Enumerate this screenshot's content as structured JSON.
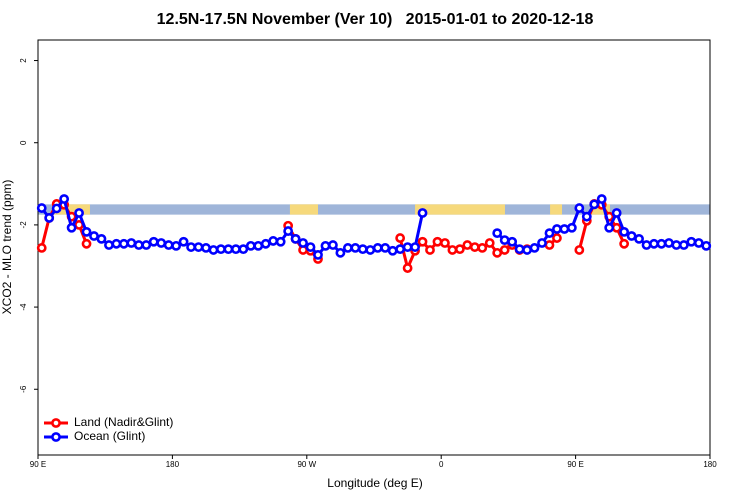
{
  "chart_data": {
    "type": "line",
    "title": "12.5N-17.5N November (Ver 10)   2015-01-01 to 2020-12-18",
    "x_label": "Longitude (deg E)",
    "y_label": "XCO2 - MLO trend (ppm)",
    "xlim": [
      90,
      540
    ],
    "ylim": [
      -7.6,
      2.5
    ],
    "xticks": [
      {
        "value": 90,
        "label": "90 E"
      },
      180,
      {
        "value": 270,
        "label": "90 W"
      },
      {
        "value": 360,
        "label": "0"
      },
      {
        "value": 450,
        "label": "90 E"
      },
      {
        "value": 540,
        "label": "180"
      }
    ],
    "yticks": [
      -6,
      -4,
      -2,
      0,
      2
    ],
    "legend": "bottom-left",
    "surface_strip": {
      "ylim": [
        -1.75,
        -1.5
      ],
      "ocean_color": "#9fb5d9",
      "land_color": "#f6d97c",
      "land_spans": [
        [
          99.4,
          124.8
        ],
        [
          258.7,
          277.5
        ],
        [
          342.5,
          402.7
        ],
        [
          432.9,
          440.9
        ],
        [
          459.6,
          473
        ]
      ]
    },
    "x": [
      92.5,
      97.5,
      102.5,
      107.5,
      112.5,
      117.5,
      122.5,
      127.5,
      132.5,
      137.5,
      142.5,
      147.5,
      152.5,
      157.5,
      162.5,
      167.5,
      172.5,
      177.5,
      182.5,
      187.5,
      192.5,
      197.5,
      202.5,
      207.5,
      212.5,
      217.5,
      222.5,
      227.5,
      232.5,
      237.5,
      242.5,
      247.5,
      252.5,
      257.5,
      262.5,
      267.5,
      272.5,
      277.5,
      282.5,
      287.5,
      292.5,
      297.5,
      302.5,
      307.5,
      312.5,
      317.5,
      322.5,
      327.5,
      332.5,
      337.5,
      342.5,
      347.5,
      352.5,
      357.5,
      362.5,
      367.5,
      372.5,
      377.5,
      382.5,
      387.5,
      392.5,
      397.5,
      402.5,
      407.5,
      412.5,
      417.5,
      422.5,
      427.5,
      432.5,
      437.5,
      442.5,
      447.5,
      452.5,
      457.5,
      462.5,
      467.5,
      472.5,
      477.5,
      482.5,
      487.5,
      492.5,
      497.5,
      502.5,
      507.5,
      512.5,
      517.5,
      522.5,
      527.5,
      532.5,
      537.5
    ],
    "series": [
      {
        "name": "Land (Nadir&Glint)",
        "color": "#ff0000",
        "values": [
          -2.56,
          -1.83,
          -1.49,
          -1.51,
          -1.8,
          -2.0,
          -2.46,
          null,
          null,
          null,
          null,
          null,
          null,
          null,
          null,
          null,
          null,
          null,
          null,
          null,
          null,
          null,
          null,
          null,
          null,
          null,
          null,
          null,
          null,
          null,
          null,
          null,
          null,
          -2.02,
          -2.34,
          -2.61,
          -2.63,
          -2.83,
          null,
          null,
          null,
          null,
          null,
          null,
          null,
          null,
          null,
          null,
          -2.32,
          -3.05,
          -2.63,
          -2.41,
          -2.61,
          -2.41,
          -2.44,
          -2.61,
          -2.59,
          -2.49,
          -2.54,
          -2.56,
          -2.44,
          -2.68,
          -2.61,
          -2.49,
          -2.61,
          -2.59,
          null,
          null,
          -2.49,
          -2.32,
          null,
          null,
          -2.61,
          -1.9,
          -1.49,
          -1.51,
          -1.8,
          -2.07,
          -2.46,
          null,
          null,
          null,
          null,
          null,
          null,
          null,
          null,
          null,
          null,
          null
        ]
      },
      {
        "name": "Ocean (Glint)",
        "color": "#0000ff",
        "values": [
          -1.59,
          -1.83,
          -1.6,
          -1.37,
          -2.07,
          -1.71,
          -2.17,
          -2.27,
          -2.34,
          -2.49,
          -2.46,
          -2.46,
          -2.44,
          -2.49,
          -2.49,
          -2.41,
          -2.44,
          -2.49,
          -2.51,
          -2.41,
          -2.54,
          -2.54,
          -2.56,
          -2.61,
          -2.59,
          -2.59,
          -2.59,
          -2.59,
          -2.51,
          -2.51,
          -2.46,
          -2.39,
          -2.41,
          -2.15,
          -2.34,
          -2.44,
          -2.54,
          -2.73,
          -2.51,
          -2.49,
          -2.68,
          -2.56,
          -2.56,
          -2.59,
          -2.61,
          -2.56,
          -2.56,
          -2.63,
          -2.59,
          -2.54,
          -2.54,
          -1.71,
          null,
          null,
          null,
          null,
          null,
          null,
          null,
          null,
          null,
          -2.2,
          -2.37,
          -2.41,
          -2.59,
          -2.61,
          -2.56,
          -2.44,
          -2.2,
          -2.1,
          -2.1,
          -2.07,
          -1.59,
          -1.8,
          -1.5,
          -1.37,
          -2.07,
          -1.71,
          -2.17,
          -2.27,
          -2.34,
          -2.49,
          -2.46,
          -2.46,
          -2.44,
          -2.49,
          -2.49,
          -2.41,
          -2.44,
          -2.51
        ]
      }
    ]
  }
}
